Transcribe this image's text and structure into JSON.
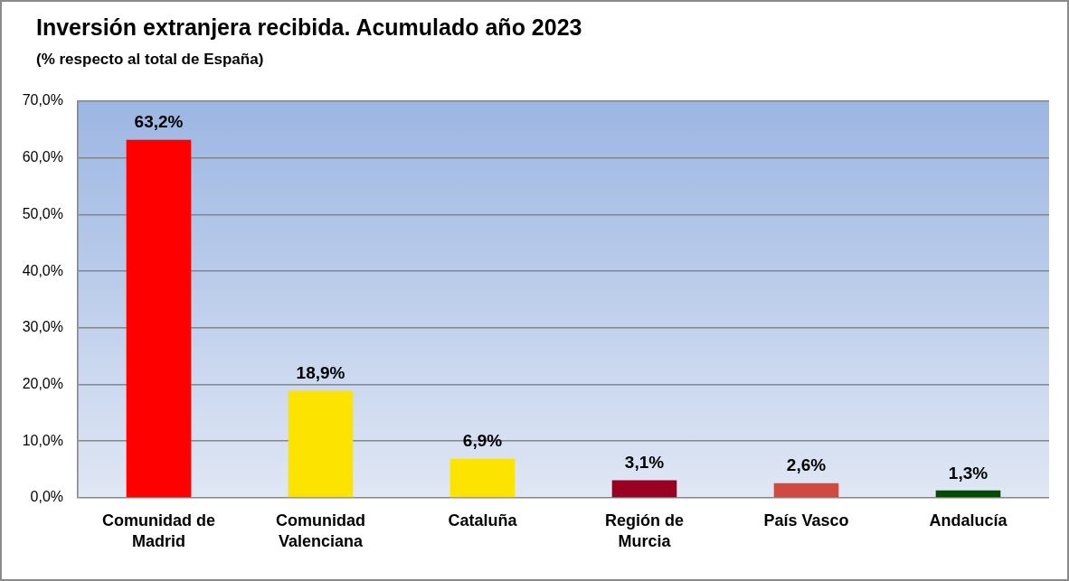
{
  "chart_data": {
    "type": "bar",
    "title": "Inversión extranjera recibida. Acumulado año 2023",
    "subtitle": "(% respecto al total de España)",
    "categories": [
      "Comunidad de Madrid",
      "Comunidad Valenciana",
      "Cataluña",
      "Región de Murcia",
      "País Vasco",
      "Andalucía"
    ],
    "values": [
      63.2,
      18.9,
      6.9,
      3.1,
      2.6,
      1.3
    ],
    "colors": [
      "#ff0000",
      "#fce300",
      "#fce300",
      "#990022",
      "#d04a3f",
      "#004d00"
    ],
    "value_labels": [
      "63,2%",
      "18,9%",
      "6,9%",
      "3,1%",
      "2,6%",
      "1,3%"
    ],
    "ylim": [
      0,
      70
    ],
    "yticks": [
      {
        "value": 0,
        "label": "0,0%"
      },
      {
        "value": 10,
        "label": "10,0%"
      },
      {
        "value": 20,
        "label": "20,0%"
      },
      {
        "value": 30,
        "label": "30,0%"
      },
      {
        "value": 40,
        "label": "40,0%"
      },
      {
        "value": 50,
        "label": "50,0%"
      },
      {
        "value": 60,
        "label": "60,0%"
      },
      {
        "value": 70,
        "label": "70,0%"
      }
    ],
    "grid": "y",
    "legend": false
  }
}
